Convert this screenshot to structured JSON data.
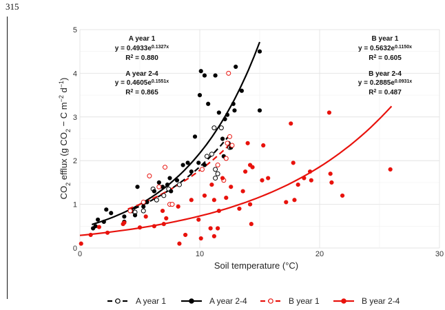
{
  "page": {
    "page_number": "315"
  },
  "chart_data": {
    "type": "scatter",
    "xlabel": "Soil temperature (°C)",
    "ylabel": "CO2 efflux (g CO2 − C m−2 d−1)",
    "xlim": [
      0,
      30
    ],
    "ylim": [
      0,
      5
    ],
    "xticks": [
      0,
      10,
      20,
      30
    ],
    "yticks": [
      0,
      1,
      2,
      3,
      4,
      5
    ],
    "grid": true,
    "legend_position": "bottom",
    "series": [
      {
        "name": "A year 1",
        "color": "#000000",
        "marker": "open-circle",
        "line": "dashed",
        "fit": {
          "a": 0.4933,
          "b": 0.1327,
          "xrange": [
            4.5,
            12.5
          ]
        },
        "points": [
          [
            4.4,
            0.85
          ],
          [
            4.6,
            0.82
          ],
          [
            5.3,
            0.85
          ],
          [
            6.1,
            1.35
          ],
          [
            6.4,
            1.1
          ],
          [
            7.0,
            1.2
          ],
          [
            7.4,
            1.35
          ],
          [
            8.3,
            1.45
          ],
          [
            10.6,
            2.1
          ],
          [
            11.0,
            2.15
          ],
          [
            11.3,
            1.8
          ],
          [
            11.5,
            1.7
          ],
          [
            11.2,
            2.75
          ],
          [
            11.8,
            2.75
          ],
          [
            12.5,
            2.3
          ],
          [
            11.3,
            1.6
          ]
        ]
      },
      {
        "name": "A year 2-4",
        "color": "#000000",
        "marker": "filled-circle",
        "line": "solid",
        "fit": {
          "a": 0.4605,
          "b": 0.1551,
          "xrange": [
            1,
            15
          ]
        },
        "points": [
          [
            1.1,
            0.45
          ],
          [
            1.3,
            0.5
          ],
          [
            1.5,
            0.65
          ],
          [
            2.0,
            0.6
          ],
          [
            2.2,
            0.88
          ],
          [
            2.6,
            0.8
          ],
          [
            3.7,
            0.6
          ],
          [
            3.7,
            0.72
          ],
          [
            4.3,
            0.85
          ],
          [
            4.6,
            0.75
          ],
          [
            4.8,
            1.4
          ],
          [
            5.3,
            0.95
          ],
          [
            5.6,
            1.05
          ],
          [
            6.2,
            1.3
          ],
          [
            6.6,
            1.5
          ],
          [
            6.9,
            1.4
          ],
          [
            7.3,
            1.45
          ],
          [
            7.5,
            1.6
          ],
          [
            7.6,
            1.3
          ],
          [
            8.1,
            1.55
          ],
          [
            8.6,
            1.9
          ],
          [
            9.0,
            1.95
          ],
          [
            9.3,
            1.75
          ],
          [
            9.6,
            2.55
          ],
          [
            9.9,
            1.95
          ],
          [
            10.1,
            4.05
          ],
          [
            10.0,
            3.5
          ],
          [
            10.4,
            1.9
          ],
          [
            10.4,
            3.95
          ],
          [
            10.7,
            3.3
          ],
          [
            11.3,
            3.95
          ],
          [
            11.6,
            3.1
          ],
          [
            11.9,
            2.5
          ],
          [
            12.0,
            2.1
          ],
          [
            12.1,
            2.95
          ],
          [
            12.3,
            3.05
          ],
          [
            12.4,
            2.4
          ],
          [
            12.6,
            2.3
          ],
          [
            12.8,
            3.3
          ],
          [
            12.9,
            3.15
          ],
          [
            13.0,
            4.15
          ],
          [
            13.5,
            3.6
          ],
          [
            15.0,
            3.15
          ],
          [
            15.0,
            4.5
          ]
        ]
      },
      {
        "name": "B year 1",
        "color": "#e8120c",
        "marker": "open-circle",
        "line": "dashed",
        "fit": {
          "a": 0.5632,
          "b": 0.115,
          "xrange": [
            4,
            12.5
          ]
        },
        "points": [
          [
            4.2,
            0.85
          ],
          [
            5.3,
            1.05
          ],
          [
            5.8,
            1.65
          ],
          [
            6.6,
            1.4
          ],
          [
            7.1,
            1.85
          ],
          [
            7.5,
            1.0
          ],
          [
            7.7,
            1.0
          ],
          [
            10.2,
            1.8
          ],
          [
            11.5,
            1.9
          ],
          [
            12.0,
            1.55
          ],
          [
            12.2,
            2.05
          ],
          [
            12.3,
            2.4
          ],
          [
            12.4,
            4.0
          ],
          [
            12.5,
            2.55
          ],
          [
            12.7,
            2.35
          ]
        ]
      },
      {
        "name": "B year 2-4",
        "color": "#e8120c",
        "marker": "filled-circle",
        "line": "solid",
        "fit": {
          "a": 0.2885,
          "b": 0.0931,
          "xrange": [
            0,
            26
          ]
        },
        "points": [
          [
            0.1,
            0.1
          ],
          [
            0.9,
            0.3
          ],
          [
            1.6,
            0.48
          ],
          [
            2.3,
            0.35
          ],
          [
            3.6,
            0.55
          ],
          [
            3.7,
            0.58
          ],
          [
            5.0,
            0.47
          ],
          [
            5.5,
            0.72
          ],
          [
            6.2,
            0.5
          ],
          [
            6.9,
            0.85
          ],
          [
            7.0,
            0.55
          ],
          [
            7.2,
            0.68
          ],
          [
            8.2,
            0.95
          ],
          [
            8.3,
            0.1
          ],
          [
            8.8,
            0.3
          ],
          [
            9.3,
            1.1
          ],
          [
            9.9,
            0.65
          ],
          [
            10.1,
            0.22
          ],
          [
            10.4,
            1.2
          ],
          [
            10.9,
            0.45
          ],
          [
            11.0,
            1.45
          ],
          [
            11.2,
            1.1
          ],
          [
            11.2,
            0.27
          ],
          [
            11.5,
            0.45
          ],
          [
            11.6,
            0.85
          ],
          [
            11.9,
            1.6
          ],
          [
            12.2,
            1.15
          ],
          [
            12.6,
            1.4
          ],
          [
            13.3,
            0.9
          ],
          [
            13.6,
            1.3
          ],
          [
            13.8,
            1.75
          ],
          [
            14.0,
            2.4
          ],
          [
            14.2,
            1.9
          ],
          [
            14.2,
            1.0
          ],
          [
            14.3,
            0.55
          ],
          [
            14.4,
            1.85
          ],
          [
            15.2,
            1.55
          ],
          [
            15.3,
            2.35
          ],
          [
            15.7,
            1.6
          ],
          [
            17.2,
            1.05
          ],
          [
            17.6,
            2.85
          ],
          [
            17.8,
            1.95
          ],
          [
            17.9,
            1.1
          ],
          [
            18.2,
            1.45
          ],
          [
            18.7,
            1.6
          ],
          [
            19.2,
            1.75
          ],
          [
            19.3,
            1.55
          ],
          [
            20.8,
            3.1
          ],
          [
            20.9,
            1.7
          ],
          [
            21.0,
            1.5
          ],
          [
            21.9,
            1.2
          ],
          [
            25.9,
            1.8
          ]
        ]
      }
    ],
    "annotations": [
      {
        "id": "a1_title",
        "text": "A year 1"
      },
      {
        "id": "a1_eq_main",
        "text": "y = 0.4933e",
        "sup": "0.1327x"
      },
      {
        "id": "a1_r2",
        "text": "R",
        "sup": "2",
        "tail": " = 0.880"
      },
      {
        "id": "a24_title",
        "text": "A year 2-4"
      },
      {
        "id": "a24_eq_main",
        "text": "y = 0.4605e",
        "sup": "0.1551x"
      },
      {
        "id": "a24_r2",
        "text": "R",
        "sup": "2",
        "tail": " = 0.865"
      },
      {
        "id": "b1_title",
        "text": "B year 1"
      },
      {
        "id": "b1_eq_main",
        "text": "y = 0.5632e",
        "sup": "0.1150x"
      },
      {
        "id": "b1_r2",
        "text": "R",
        "sup": "2",
        "tail": " = 0.605"
      },
      {
        "id": "b24_title",
        "text": "B year 2-4"
      },
      {
        "id": "b24_eq_main",
        "text": "y = 0.2885e",
        "sup": "0.0931x"
      },
      {
        "id": "b24_r2",
        "text": "R",
        "sup": "2",
        "tail": " = 0.487"
      }
    ]
  }
}
